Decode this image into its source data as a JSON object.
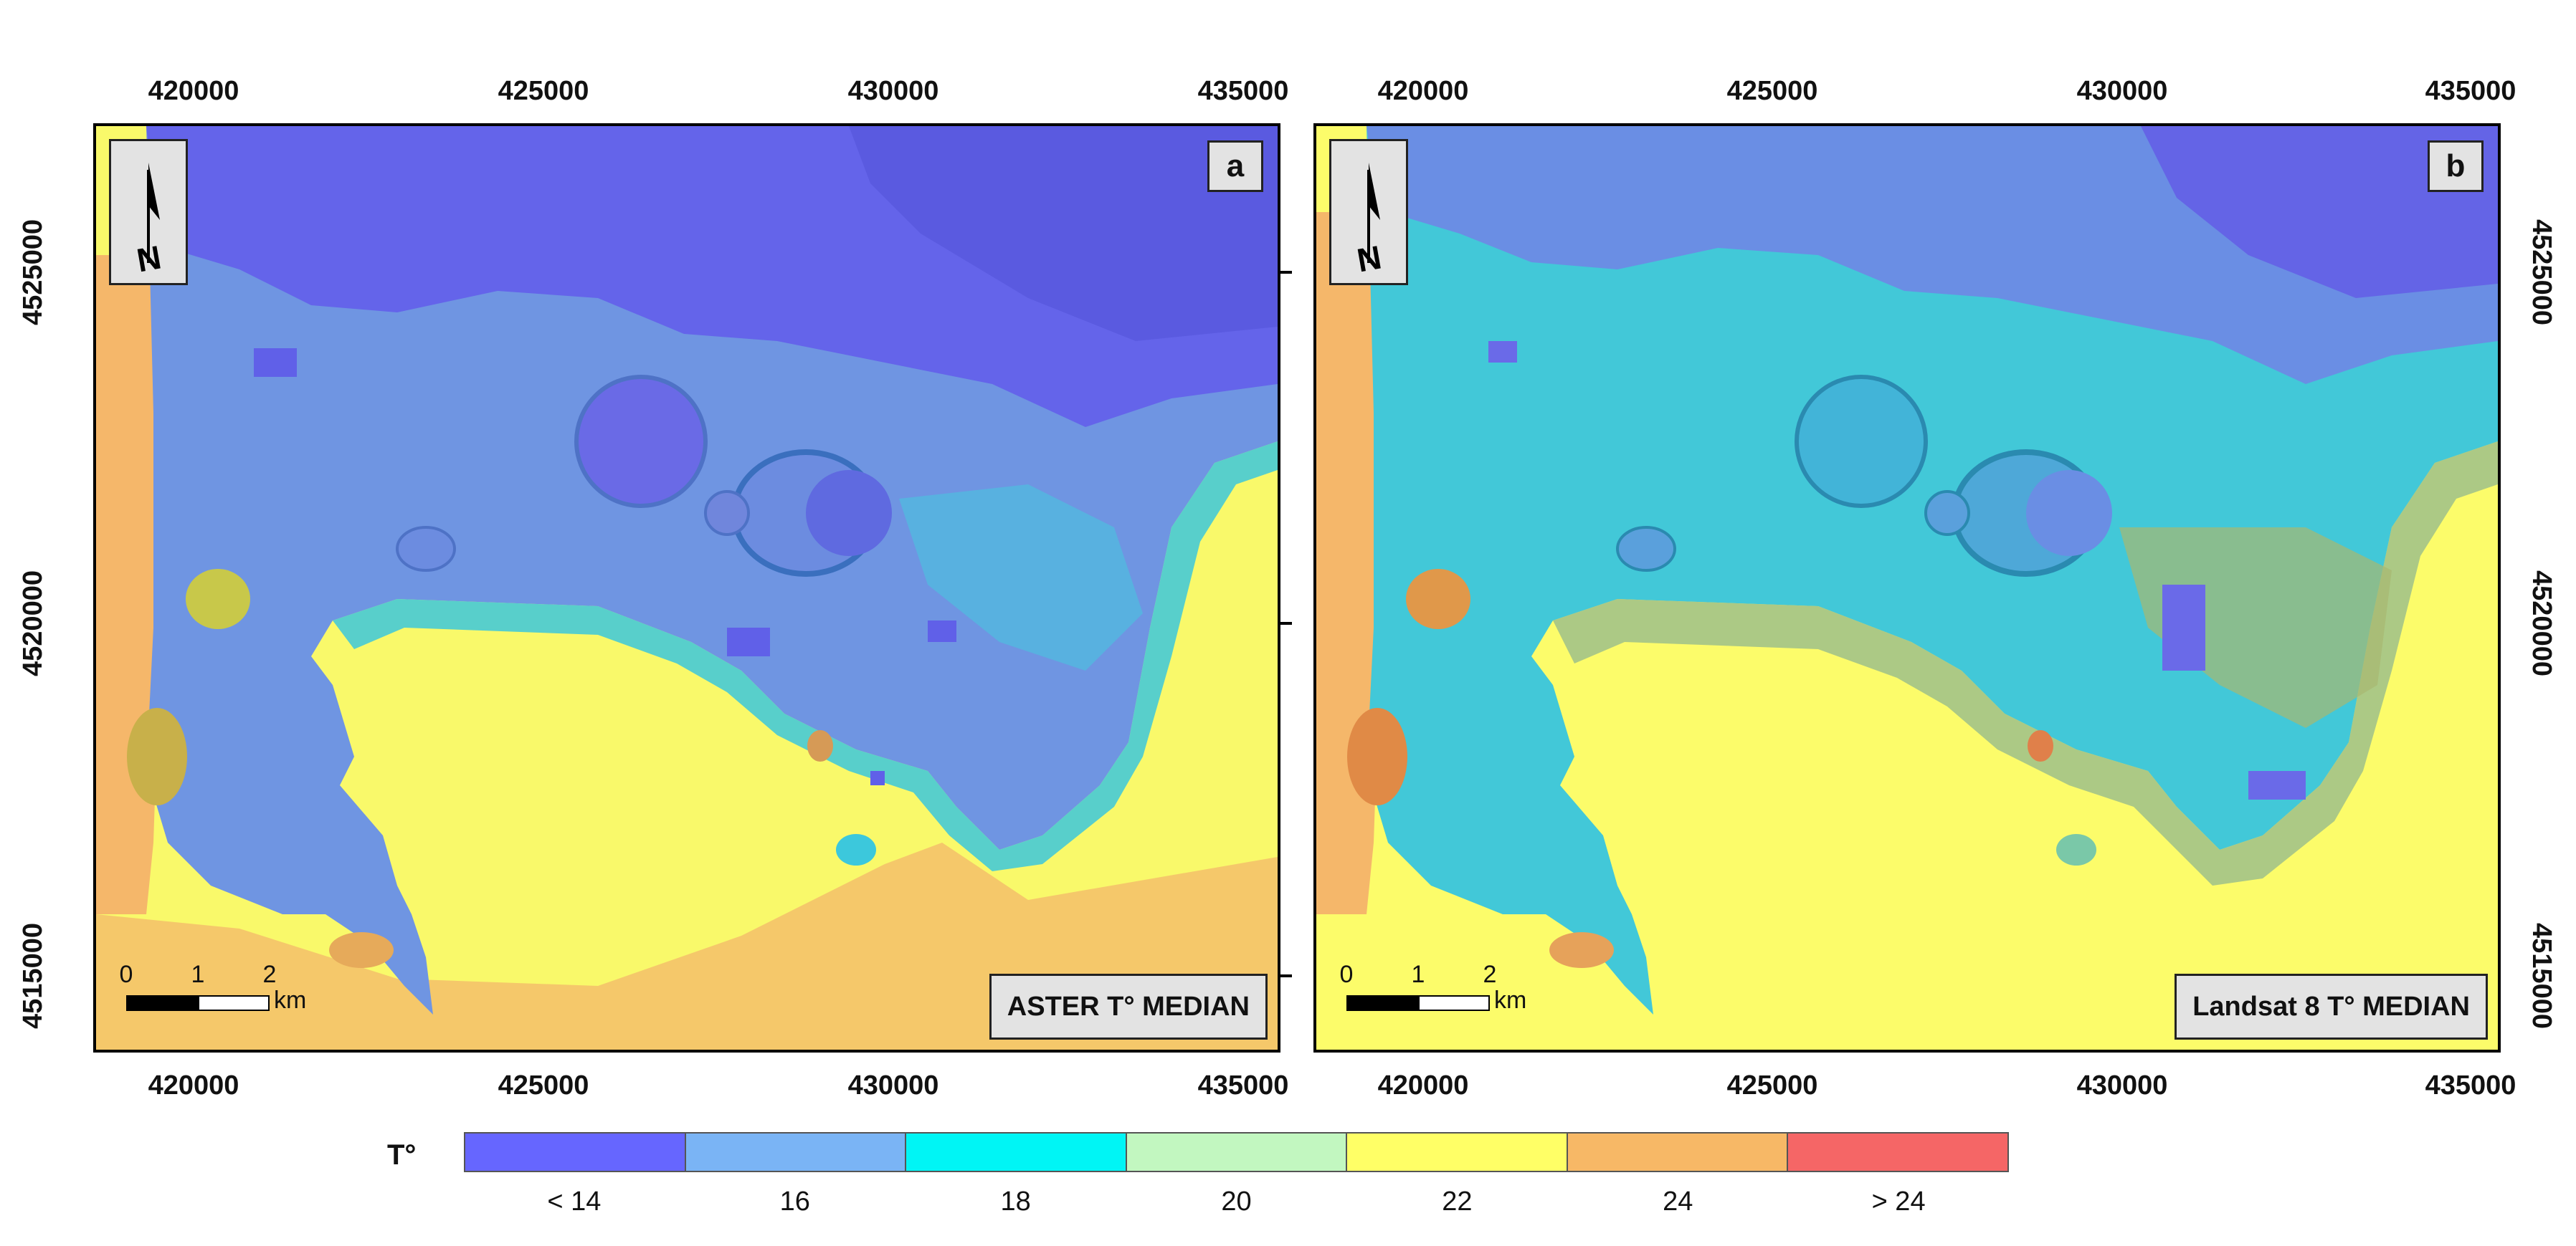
{
  "axes": {
    "x_ticks": [
      "420000",
      "425000",
      "430000",
      "435000"
    ],
    "y_ticks": [
      "4525000",
      "4520000",
      "4515000"
    ]
  },
  "panels": [
    {
      "letter": "a",
      "title": "ASTER T° MEDIAN"
    },
    {
      "letter": "b",
      "title": "Landsat 8 T° MEDIAN"
    }
  ],
  "scalebar": {
    "ticks": [
      "0",
      "1",
      "2"
    ],
    "unit": "km"
  },
  "legend": {
    "title": "T°",
    "classes": [
      {
        "label": "< 14",
        "color": "#6666ff"
      },
      {
        "label": "16",
        "color": "#7ab4f5"
      },
      {
        "label": "18",
        "color": "#00f5f5"
      },
      {
        "label": "20",
        "color": "#c2f7c0"
      },
      {
        "label": "22",
        "color": "#ffff66"
      },
      {
        "label": "24",
        "color": "#f7b866"
      },
      {
        "label": "> 24",
        "color": "#f56666"
      }
    ]
  }
}
